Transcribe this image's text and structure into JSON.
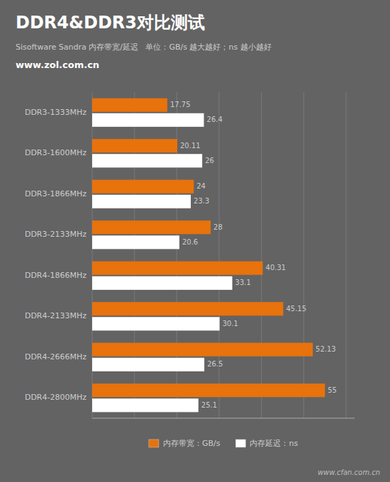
{
  "chart_data": {
    "type": "bar",
    "orientation": "horizontal",
    "title": "DDR4&DDR3对比测试",
    "subtitle": "Sisoftware Sandra 内存带宽/延迟   单位：GB/s 越大越好；ns 越小越好",
    "annotations": [
      "www.zol.com.cn",
      "www.cfan.com.cn"
    ],
    "categories": [
      "DDR3-1333MHz",
      "DDR3-1600MHz",
      "DDR3-1866MHz",
      "DDR3-2133MHz",
      "DDR4-1866MHz",
      "DDR4-2133MHz",
      "DDR4-2666MHz",
      "DDR4-2800MHz"
    ],
    "series": [
      {
        "name": "内存带宽：GB/s",
        "color": "#E8720C",
        "values": [
          17.75,
          20.11,
          24,
          28,
          40.31,
          45.15,
          52.13,
          55
        ]
      },
      {
        "name": "内存延迟：ns",
        "color": "#FFFFFF",
        "values": [
          26.4,
          26,
          23.3,
          20.6,
          33.1,
          30.1,
          26.5,
          25.1
        ]
      }
    ],
    "xlim": [
      0,
      62
    ],
    "xticks": [
      0,
      10,
      20,
      30,
      40,
      50,
      60
    ],
    "grid": true,
    "tick_labels": "y",
    "data_labels": true,
    "legend": "bottom"
  }
}
